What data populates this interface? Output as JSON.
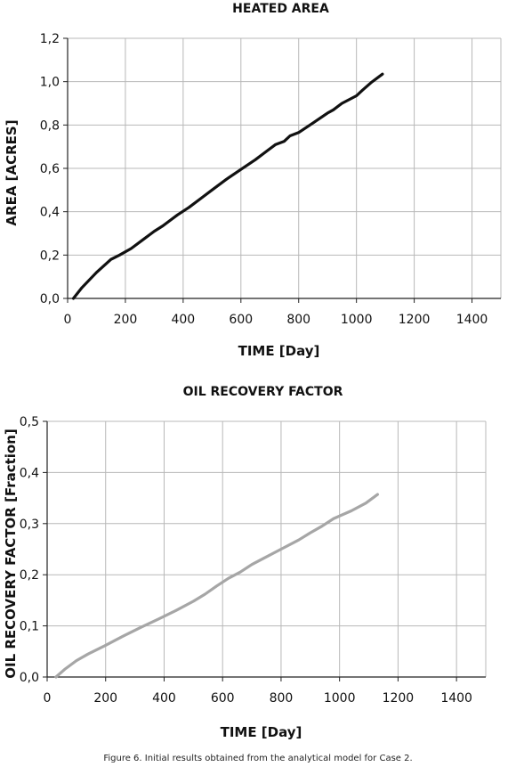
{
  "chart_data": [
    {
      "type": "line",
      "title": "HEATED AREA",
      "xlabel": "TIME [Day]",
      "ylabel": "AREA [ACRES]",
      "xlim": [
        0,
        1500
      ],
      "ylim": [
        0,
        1.2
      ],
      "x_ticks": [
        "0",
        "200",
        "400",
        "600",
        "800",
        "1000",
        "1200",
        "1400"
      ],
      "y_ticks": [
        "0,0",
        "0,2",
        "0,4",
        "0,6",
        "0,8",
        "1,0",
        "1,2"
      ],
      "grid": true,
      "legend": "none",
      "series": [
        {
          "color": "#111111",
          "x": [
            20,
            50,
            100,
            150,
            180,
            220,
            260,
            300,
            330,
            350,
            380,
            420,
            460,
            500,
            550,
            600,
            650,
            690,
            720,
            750,
            770,
            800,
            850,
            900,
            920,
            950,
            1000,
            1020,
            1050,
            1090
          ],
          "y": [
            0.0,
            0.05,
            0.12,
            0.18,
            0.2,
            0.23,
            0.27,
            0.31,
            0.335,
            0.355,
            0.385,
            0.42,
            0.46,
            0.5,
            0.55,
            0.595,
            0.64,
            0.68,
            0.71,
            0.725,
            0.75,
            0.765,
            0.81,
            0.855,
            0.87,
            0.9,
            0.935,
            0.96,
            0.995,
            1.035
          ]
        }
      ]
    },
    {
      "type": "line",
      "title": "OIL RECOVERY FACTOR",
      "xlabel": "TIME [Day]",
      "ylabel": "OIL RECOVERY FACTOR [Fraction]",
      "xlim": [
        0,
        1500
      ],
      "ylim": [
        0,
        0.5
      ],
      "x_ticks": [
        "0",
        "200",
        "400",
        "600",
        "800",
        "1000",
        "1200",
        "1400"
      ],
      "y_ticks": [
        "0,0",
        "0,1",
        "0,2",
        "0,3",
        "0,4",
        "0,5"
      ],
      "grid": true,
      "legend": "none",
      "series": [
        {
          "color": "#a6a6a6",
          "x": [
            30,
            60,
            100,
            140,
            200,
            260,
            320,
            380,
            440,
            500,
            540,
            580,
            620,
            660,
            700,
            740,
            800,
            860,
            900,
            940,
            980,
            1040,
            1090,
            1130
          ],
          "y": [
            0.0,
            0.015,
            0.032,
            0.045,
            0.062,
            0.08,
            0.097,
            0.113,
            0.13,
            0.148,
            0.162,
            0.178,
            0.193,
            0.205,
            0.22,
            0.232,
            0.25,
            0.268,
            0.282,
            0.295,
            0.31,
            0.325,
            0.34,
            0.357
          ]
        }
      ]
    }
  ],
  "caption": "Figure 6. Initial results obtained from the analytical model for Case 2."
}
